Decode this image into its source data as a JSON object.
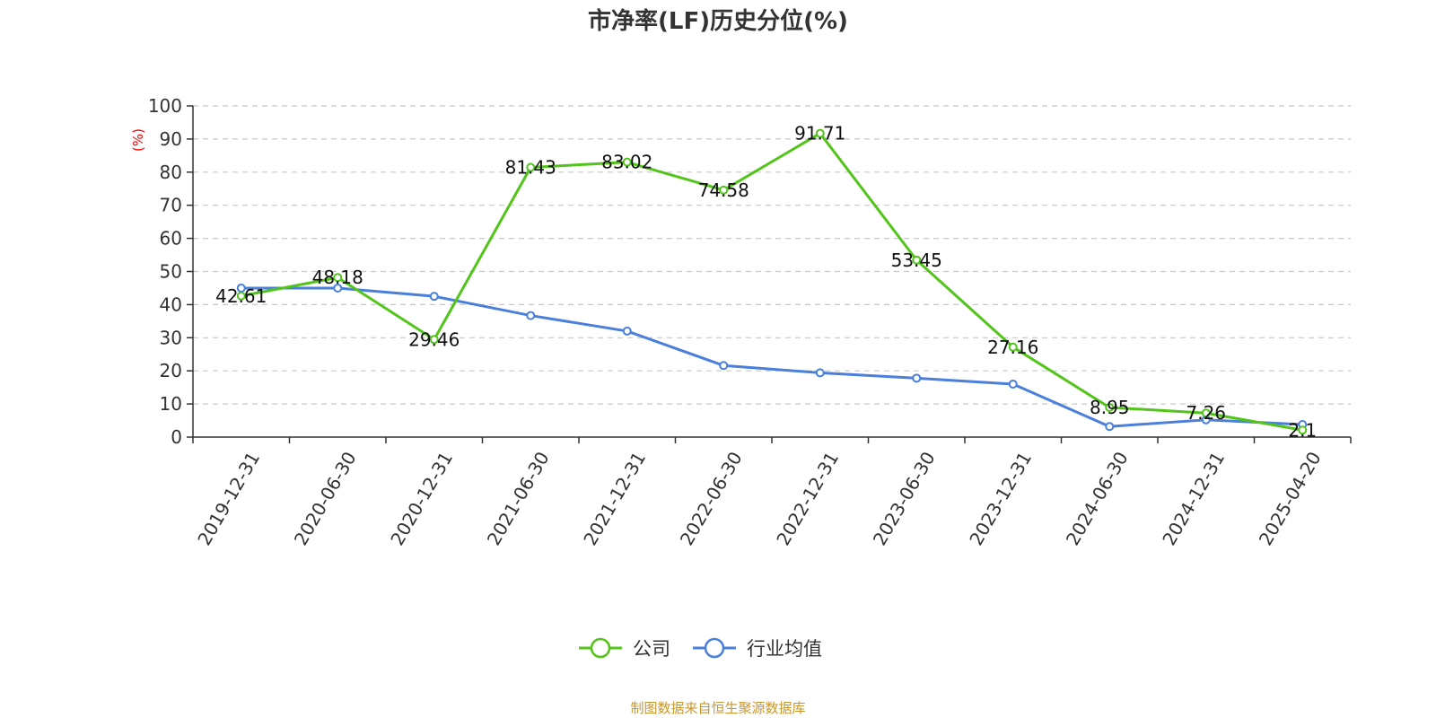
{
  "chart_data": {
    "type": "line",
    "title": "市净率(LF)历史分位(%)",
    "ylabel": "(%)",
    "xlabel": "",
    "ylim": [
      0,
      100
    ],
    "yticks": [
      0,
      10,
      20,
      30,
      40,
      50,
      60,
      70,
      80,
      90,
      100
    ],
    "grid": true,
    "legend_position": "bottom",
    "categories": [
      "2019-12-31",
      "2020-06-30",
      "2020-12-31",
      "2021-06-30",
      "2021-12-31",
      "2022-06-30",
      "2022-12-31",
      "2023-06-30",
      "2023-12-31",
      "2024-06-30",
      "2024-12-31",
      "2025-04-20"
    ],
    "series": [
      {
        "name": "公司",
        "color": "#52c41a",
        "values": [
          42.61,
          48.18,
          29.46,
          81.43,
          83.02,
          74.58,
          91.71,
          53.45,
          27.16,
          8.95,
          7.26,
          2.1
        ],
        "labels": [
          "42.61",
          "48.18",
          "29.46",
          "81.43",
          "83.02",
          "74.58",
          "91.71",
          "53.45",
          "27.16",
          "8.95",
          "7.26",
          "2.1"
        ]
      },
      {
        "name": "行业均值",
        "color": "#4a7fdc",
        "values": [
          45.0,
          45.0,
          42.5,
          36.7,
          32.0,
          21.6,
          19.4,
          17.8,
          16.0,
          3.2,
          5.2,
          3.8
        ]
      }
    ]
  },
  "source": "制图数据来自恒生聚源数据库"
}
